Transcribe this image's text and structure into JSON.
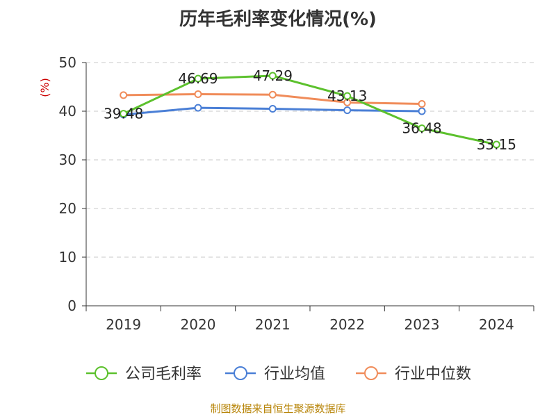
{
  "chart_data": {
    "type": "line",
    "title": "历年毛利率变化情况(%)",
    "ylabel": "(%)",
    "categories": [
      "2019",
      "2020",
      "2021",
      "2022",
      "2023",
      "2024"
    ],
    "ylim": [
      0,
      50
    ],
    "yticks": [
      "0",
      "10",
      "20",
      "30",
      "40",
      "50"
    ],
    "grid": true,
    "legend_position": "bottom",
    "series": [
      {
        "name": "公司毛利率",
        "color": "#5cc12d",
        "values": [
          39.48,
          46.69,
          47.29,
          43.13,
          36.48,
          33.15
        ],
        "labels": [
          "39.48",
          "46.69",
          "47.29",
          "43.13",
          "36.48",
          "33.15"
        ]
      },
      {
        "name": "行业均值",
        "color": "#4a7fd6",
        "values": [
          39.3,
          40.7,
          40.5,
          40.2,
          40.0,
          null
        ]
      },
      {
        "name": "行业中位数",
        "color": "#f08c5a",
        "values": [
          43.3,
          43.5,
          43.4,
          41.8,
          41.5,
          null
        ]
      }
    ],
    "source": "制图数据来自恒生聚源数据库"
  }
}
